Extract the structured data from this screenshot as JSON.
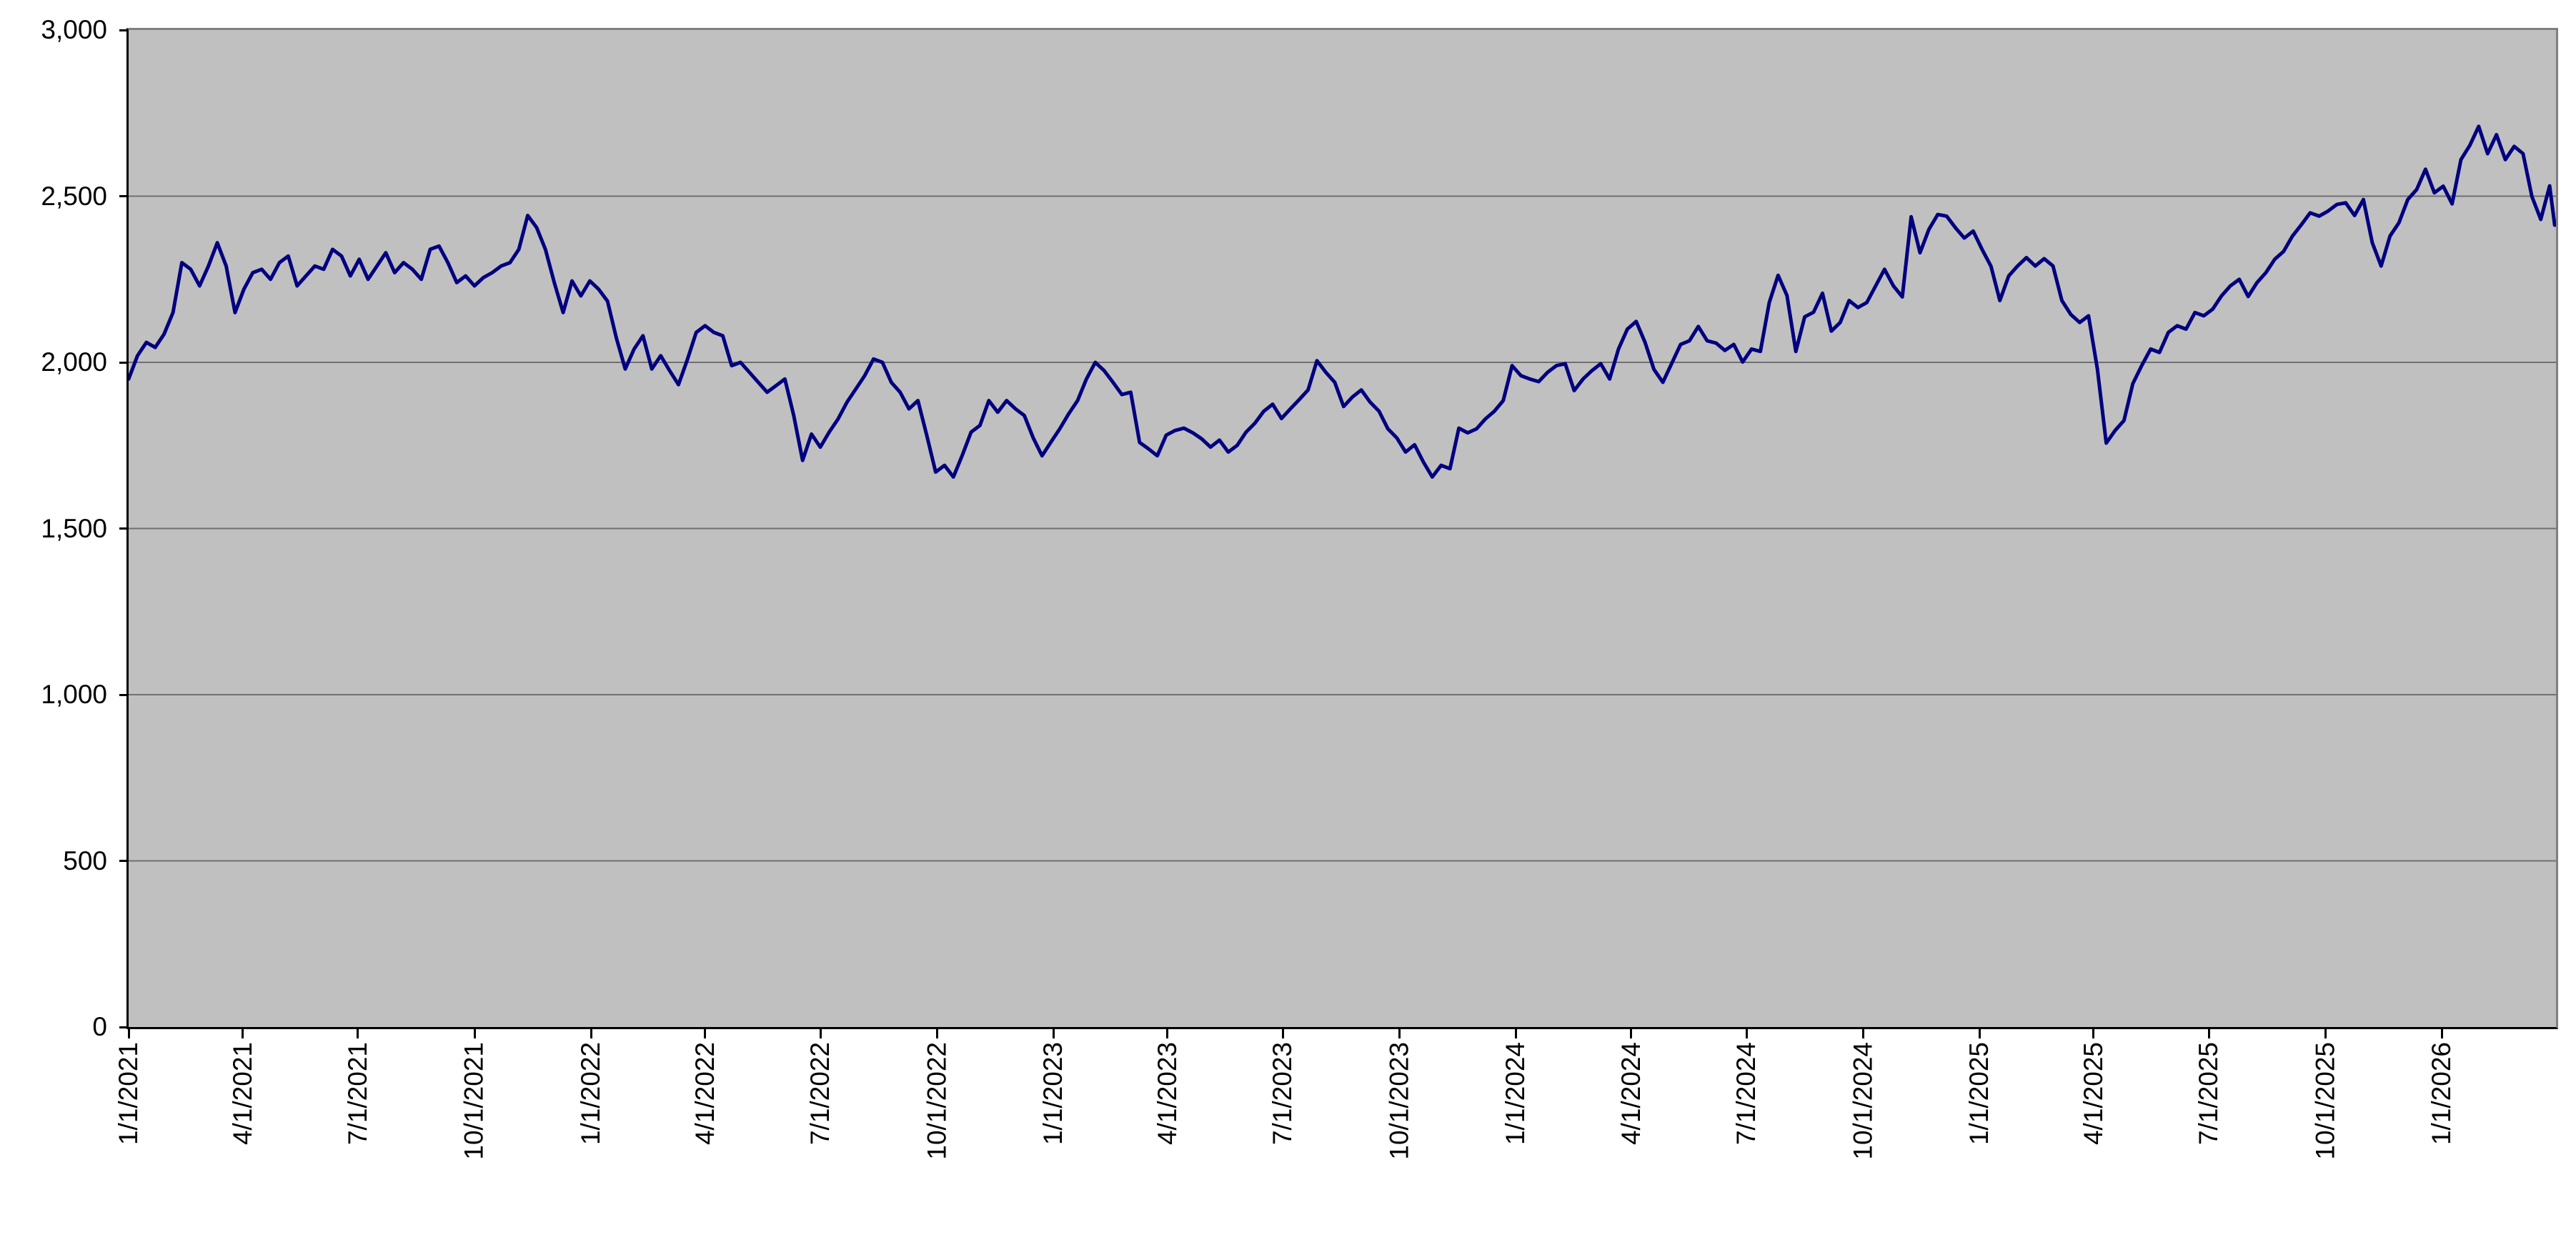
{
  "page": {
    "background_color": "#ffffff"
  },
  "chart_data": {
    "type": "line",
    "title": "",
    "legend_position": "none",
    "grid": "horizontal",
    "plot_background_color": "#c0c0c0",
    "gridline_color": "#707070",
    "line_color": "#000080",
    "axis_text_color": "#000000",
    "ylim": [
      0,
      3000
    ],
    "y_ticks": [
      0,
      500,
      1000,
      1500,
      2000,
      2500,
      3000
    ],
    "y_tick_labels": [
      "0",
      "500",
      "1,000",
      "1,500",
      "2,000",
      "2,500",
      "3,000"
    ],
    "x_axis_start": "1/1/2021",
    "x_axis_end": "4/1/2026",
    "x_tick_labels": [
      "1/1/2021",
      "4/1/2021",
      "7/1/2021",
      "10/1/2021",
      "1/1/2022",
      "4/1/2022",
      "7/1/2022",
      "10/1/2022",
      "1/1/2023",
      "4/1/2023",
      "7/1/2023",
      "10/1/2023",
      "1/1/2024",
      "4/1/2024",
      "7/1/2024",
      "10/1/2024",
      "1/1/2025",
      "4/1/2025",
      "7/1/2025",
      "10/1/2025",
      "1/1/2026"
    ],
    "series": [
      {
        "sampling": "weekly",
        "start_date": "1/1/2021",
        "end_date": "3/31/2026",
        "values": [
          1950,
          2020,
          2060,
          2045,
          2085,
          2150,
          2300,
          2280,
          2230,
          2290,
          2360,
          2290,
          2150,
          2220,
          2270,
          2280,
          2250,
          2300,
          2320,
          2230,
          2260,
          2290,
          2280,
          2340,
          2320,
          2260,
          2310,
          2250,
          2290,
          2330,
          2270,
          2300,
          2280,
          2250,
          2340,
          2350,
          2300,
          2240,
          2260,
          2230,
          2255,
          2270,
          2290,
          2300,
          2340,
          2442,
          2406,
          2340,
          2240,
          2150,
          2245,
          2200,
          2245,
          2220,
          2184,
          2073,
          1980,
          2040,
          2080,
          1980,
          2020,
          1975,
          1933,
          2008,
          2090,
          2110,
          2090,
          2080,
          1990,
          2000,
          1970,
          1940,
          1910,
          1930,
          1950,
          1840,
          1705,
          1784,
          1745,
          1790,
          1830,
          1880,
          1920,
          1960,
          2010,
          2000,
          1940,
          1910,
          1860,
          1885,
          1780,
          1670,
          1690,
          1655,
          1720,
          1790,
          1810,
          1885,
          1850,
          1885,
          1860,
          1840,
          1773,
          1719,
          1760,
          1800,
          1845,
          1885,
          1950,
          2000,
          1975,
          1940,
          1903,
          1910,
          1759,
          1740,
          1719,
          1781,
          1795,
          1802,
          1788,
          1770,
          1745,
          1766,
          1730,
          1750,
          1790,
          1817,
          1853,
          1874,
          1831,
          1860,
          1888,
          1917,
          2005,
          1970,
          1940,
          1867,
          1896,
          1917,
          1880,
          1853,
          1800,
          1773,
          1730,
          1752,
          1700,
          1655,
          1690,
          1680,
          1802,
          1788,
          1800,
          1830,
          1853,
          1885,
          1990,
          1960,
          1950,
          1942,
          1970,
          1990,
          1996,
          1915,
          1950,
          1975,
          1996,
          1950,
          2040,
          2100,
          2123,
          2060,
          1979,
          1940,
          1997,
          2054,
          2065,
          2108,
          2065,
          2058,
          2036,
          2054,
          2001,
          2040,
          2033,
          2180,
          2262,
          2201,
          2033,
          2137,
          2151,
          2208,
          2094,
          2120,
          2186,
          2165,
          2180,
          2230,
          2280,
          2230,
          2197,
          2438,
          2330,
          2400,
          2445,
          2440,
          2405,
          2374,
          2395,
          2340,
          2289,
          2186,
          2260,
          2290,
          2315,
          2290,
          2312,
          2290,
          2186,
          2144,
          2120,
          2140,
          1980,
          1757,
          1795,
          1825,
          1936,
          1990,
          2040,
          2030,
          2090,
          2110,
          2100,
          2150,
          2140,
          2160,
          2200,
          2230,
          2250,
          2198,
          2240,
          2270,
          2310,
          2334,
          2380,
          2414,
          2450,
          2440,
          2455,
          2475,
          2480,
          2442,
          2490,
          2360,
          2290,
          2380,
          2420,
          2490,
          2520,
          2581,
          2510,
          2530,
          2477,
          2610,
          2653,
          2710,
          2628,
          2685,
          2610,
          2650,
          2628,
          2499,
          2430,
          2531,
          2413
        ]
      }
    ]
  }
}
